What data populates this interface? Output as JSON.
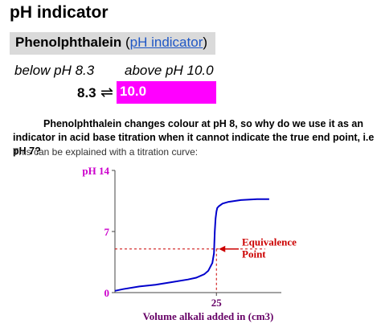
{
  "title": "pH indicator",
  "indicator": {
    "name": "Phenolphthalein",
    "paren_open": "(",
    "link_text": "pH indicator",
    "paren_close": ")"
  },
  "range": {
    "below_label": "below pH 8.3",
    "above_label": "above pH 10.0",
    "low_value": "8.3",
    "arrows": "⇌",
    "high_value": "10.0"
  },
  "question": "Phenolphthalein changes colour at pH 8, so why do we use it as an indicator in acid base titration when it cannot indicate the true end point, i.e pH 7?",
  "explanation": "This can be explained with a titration curve:",
  "colors": {
    "magenta": "#ff00ff",
    "curve": "#0000cc",
    "axis_labels": "#cc00cc",
    "annotation": "#cc0000",
    "xlabel": "#660066"
  },
  "chart_data": {
    "type": "line",
    "ylabel": "pH",
    "yticks": [
      "14",
      "7",
      "0"
    ],
    "xticks": [
      "25"
    ],
    "xlabel": "Volume  alkali added in (cm3)",
    "ylim": [
      0,
      14
    ],
    "xlim": [
      0,
      40
    ],
    "annotation": {
      "line1": "Equivalence",
      "line2": "Point",
      "x": 25,
      "y": 5
    },
    "series": [
      {
        "x": [
          0,
          2,
          6,
          10,
          14,
          18,
          20,
          22,
          23,
          24,
          24.4,
          24.6,
          24.8,
          25,
          25.2,
          25.6,
          26.5,
          28,
          31,
          35,
          38
        ],
        "y": [
          0.2,
          0.4,
          0.7,
          0.9,
          1.2,
          1.5,
          1.7,
          2.1,
          2.5,
          3.4,
          4.5,
          7,
          8.5,
          9.3,
          9.7,
          9.9,
          10.2,
          10.4,
          10.6,
          10.7,
          10.7
        ]
      }
    ]
  }
}
